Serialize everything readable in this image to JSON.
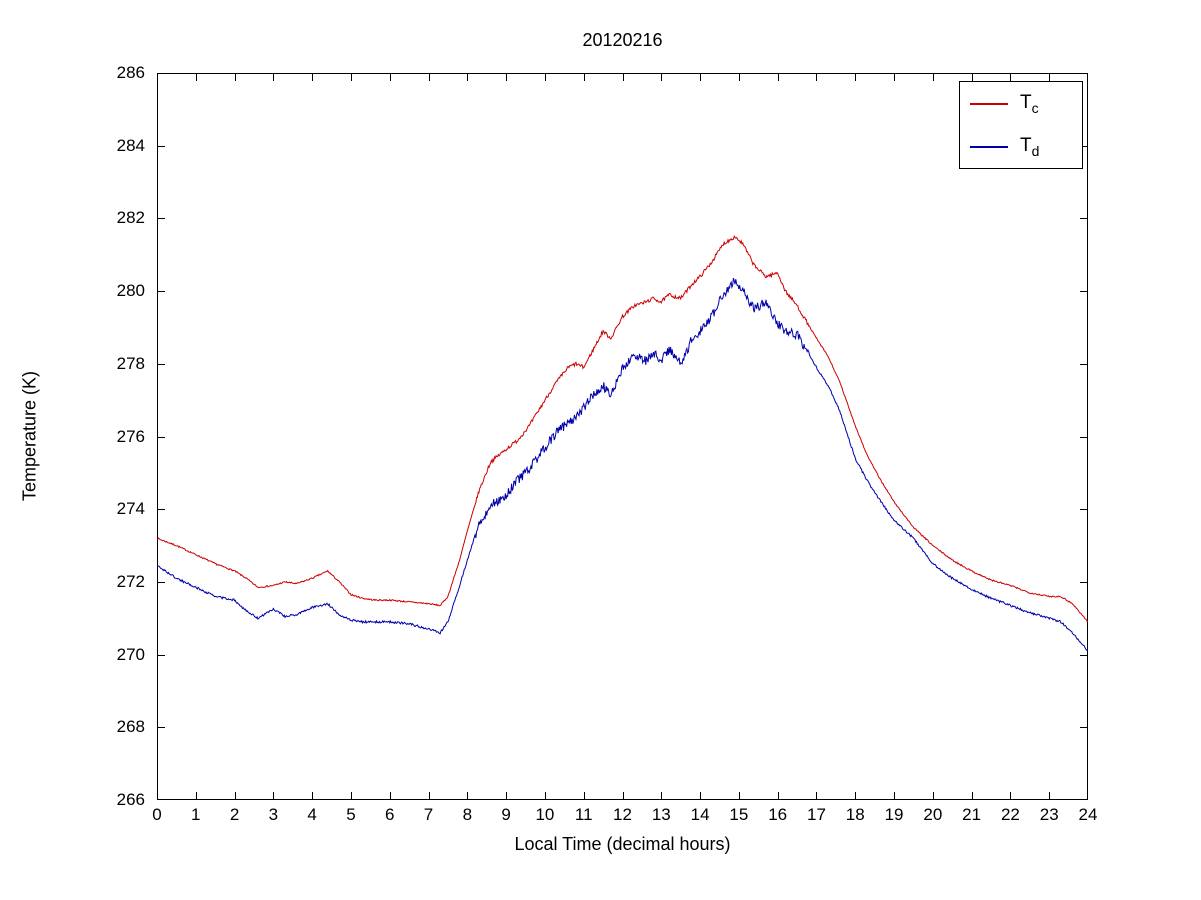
{
  "title": "20120216",
  "chart_data": {
    "type": "line",
    "title": "20120216",
    "xlabel": "Local Time (decimal hours)",
    "ylabel": "Temperature (K)",
    "xlim": [
      0,
      24
    ],
    "ylim": [
      266,
      286
    ],
    "x_ticks": [
      0,
      1,
      2,
      3,
      4,
      5,
      6,
      7,
      8,
      9,
      10,
      11,
      12,
      13,
      14,
      15,
      16,
      17,
      18,
      19,
      20,
      21,
      22,
      23,
      24
    ],
    "y_ticks": [
      266,
      268,
      270,
      272,
      274,
      276,
      278,
      280,
      282,
      284,
      286
    ],
    "grid": false,
    "legend_position": "top-right",
    "axis_color": "#000000",
    "series": [
      {
        "name": "T_c",
        "label_main": "T",
        "label_sub": "c",
        "color": "#cc0000",
        "noise_day": 0.05,
        "noise_night": 0.02,
        "x": [
          0,
          0.5,
          1,
          1.5,
          2,
          2.3,
          2.6,
          3,
          3.3,
          3.6,
          4,
          4.4,
          4.7,
          5,
          5.3,
          5.6,
          6,
          6.5,
          7,
          7.3,
          7.5,
          7.8,
          8,
          8.3,
          8.6,
          9,
          9.3,
          9.6,
          10,
          10.3,
          10.6,
          10.8,
          11,
          11.3,
          11.5,
          11.7,
          12,
          12.3,
          12.6,
          12.8,
          13,
          13.2,
          13.5,
          13.8,
          14,
          14.3,
          14.6,
          14.9,
          15.1,
          15.4,
          15.7,
          16,
          16.2,
          16.5,
          17,
          17.3,
          17.6,
          18,
          18.3,
          18.6,
          19,
          19.5,
          20,
          20.5,
          21,
          21.5,
          22,
          22.5,
          23,
          23.3,
          23.6,
          24
        ],
        "y": [
          273.2,
          273.0,
          272.75,
          272.5,
          272.3,
          272.1,
          271.85,
          271.9,
          272.0,
          271.95,
          272.1,
          272.3,
          272.0,
          271.65,
          271.55,
          271.5,
          271.5,
          271.45,
          271.4,
          271.35,
          271.6,
          272.6,
          273.4,
          274.5,
          275.3,
          275.65,
          275.9,
          276.3,
          277.0,
          277.5,
          277.9,
          278.0,
          277.9,
          278.5,
          278.9,
          278.7,
          279.3,
          279.6,
          279.7,
          279.8,
          279.7,
          279.9,
          279.8,
          280.2,
          280.4,
          280.8,
          281.3,
          281.5,
          281.3,
          280.7,
          280.4,
          280.5,
          280.0,
          279.6,
          278.7,
          278.2,
          277.5,
          276.3,
          275.5,
          274.9,
          274.2,
          273.5,
          273.0,
          272.6,
          272.3,
          272.05,
          271.9,
          271.7,
          271.6,
          271.6,
          271.4,
          270.9
        ]
      },
      {
        "name": "T_d",
        "label_main": "T",
        "label_sub": "d",
        "color": "#0000aa",
        "noise_day": 0.13,
        "noise_night": 0.03,
        "x": [
          0,
          0.5,
          1,
          1.5,
          2,
          2.3,
          2.6,
          3,
          3.3,
          3.6,
          4,
          4.4,
          4.7,
          5,
          5.3,
          5.6,
          6,
          6.5,
          7,
          7.3,
          7.5,
          7.8,
          8,
          8.3,
          8.6,
          9,
          9.3,
          9.6,
          10,
          10.3,
          10.6,
          10.8,
          11,
          11.3,
          11.5,
          11.7,
          12,
          12.3,
          12.6,
          12.8,
          13,
          13.2,
          13.5,
          13.8,
          14,
          14.3,
          14.6,
          14.9,
          15.1,
          15.4,
          15.7,
          16,
          16.2,
          16.5,
          17,
          17.3,
          17.6,
          18,
          18.3,
          18.6,
          19,
          19.5,
          20,
          20.5,
          21,
          21.5,
          22,
          22.5,
          23,
          23.3,
          23.6,
          24
        ],
        "y": [
          272.45,
          272.1,
          271.85,
          271.6,
          271.5,
          271.2,
          271.0,
          271.25,
          271.05,
          271.1,
          271.3,
          271.4,
          271.1,
          270.95,
          270.9,
          270.9,
          270.9,
          270.85,
          270.7,
          270.6,
          270.9,
          271.9,
          272.6,
          273.6,
          274.1,
          274.4,
          274.8,
          275.1,
          275.7,
          276.1,
          276.4,
          276.5,
          276.8,
          277.2,
          277.4,
          277.1,
          277.9,
          278.2,
          278.1,
          278.3,
          278.1,
          278.4,
          278.0,
          278.7,
          278.9,
          279.3,
          279.9,
          280.3,
          280.0,
          279.5,
          279.7,
          279.1,
          278.9,
          278.8,
          277.9,
          277.4,
          276.7,
          275.4,
          274.8,
          274.3,
          273.7,
          273.2,
          272.5,
          272.1,
          271.8,
          271.55,
          271.35,
          271.15,
          271.0,
          270.9,
          270.6,
          270.1
        ]
      }
    ]
  }
}
